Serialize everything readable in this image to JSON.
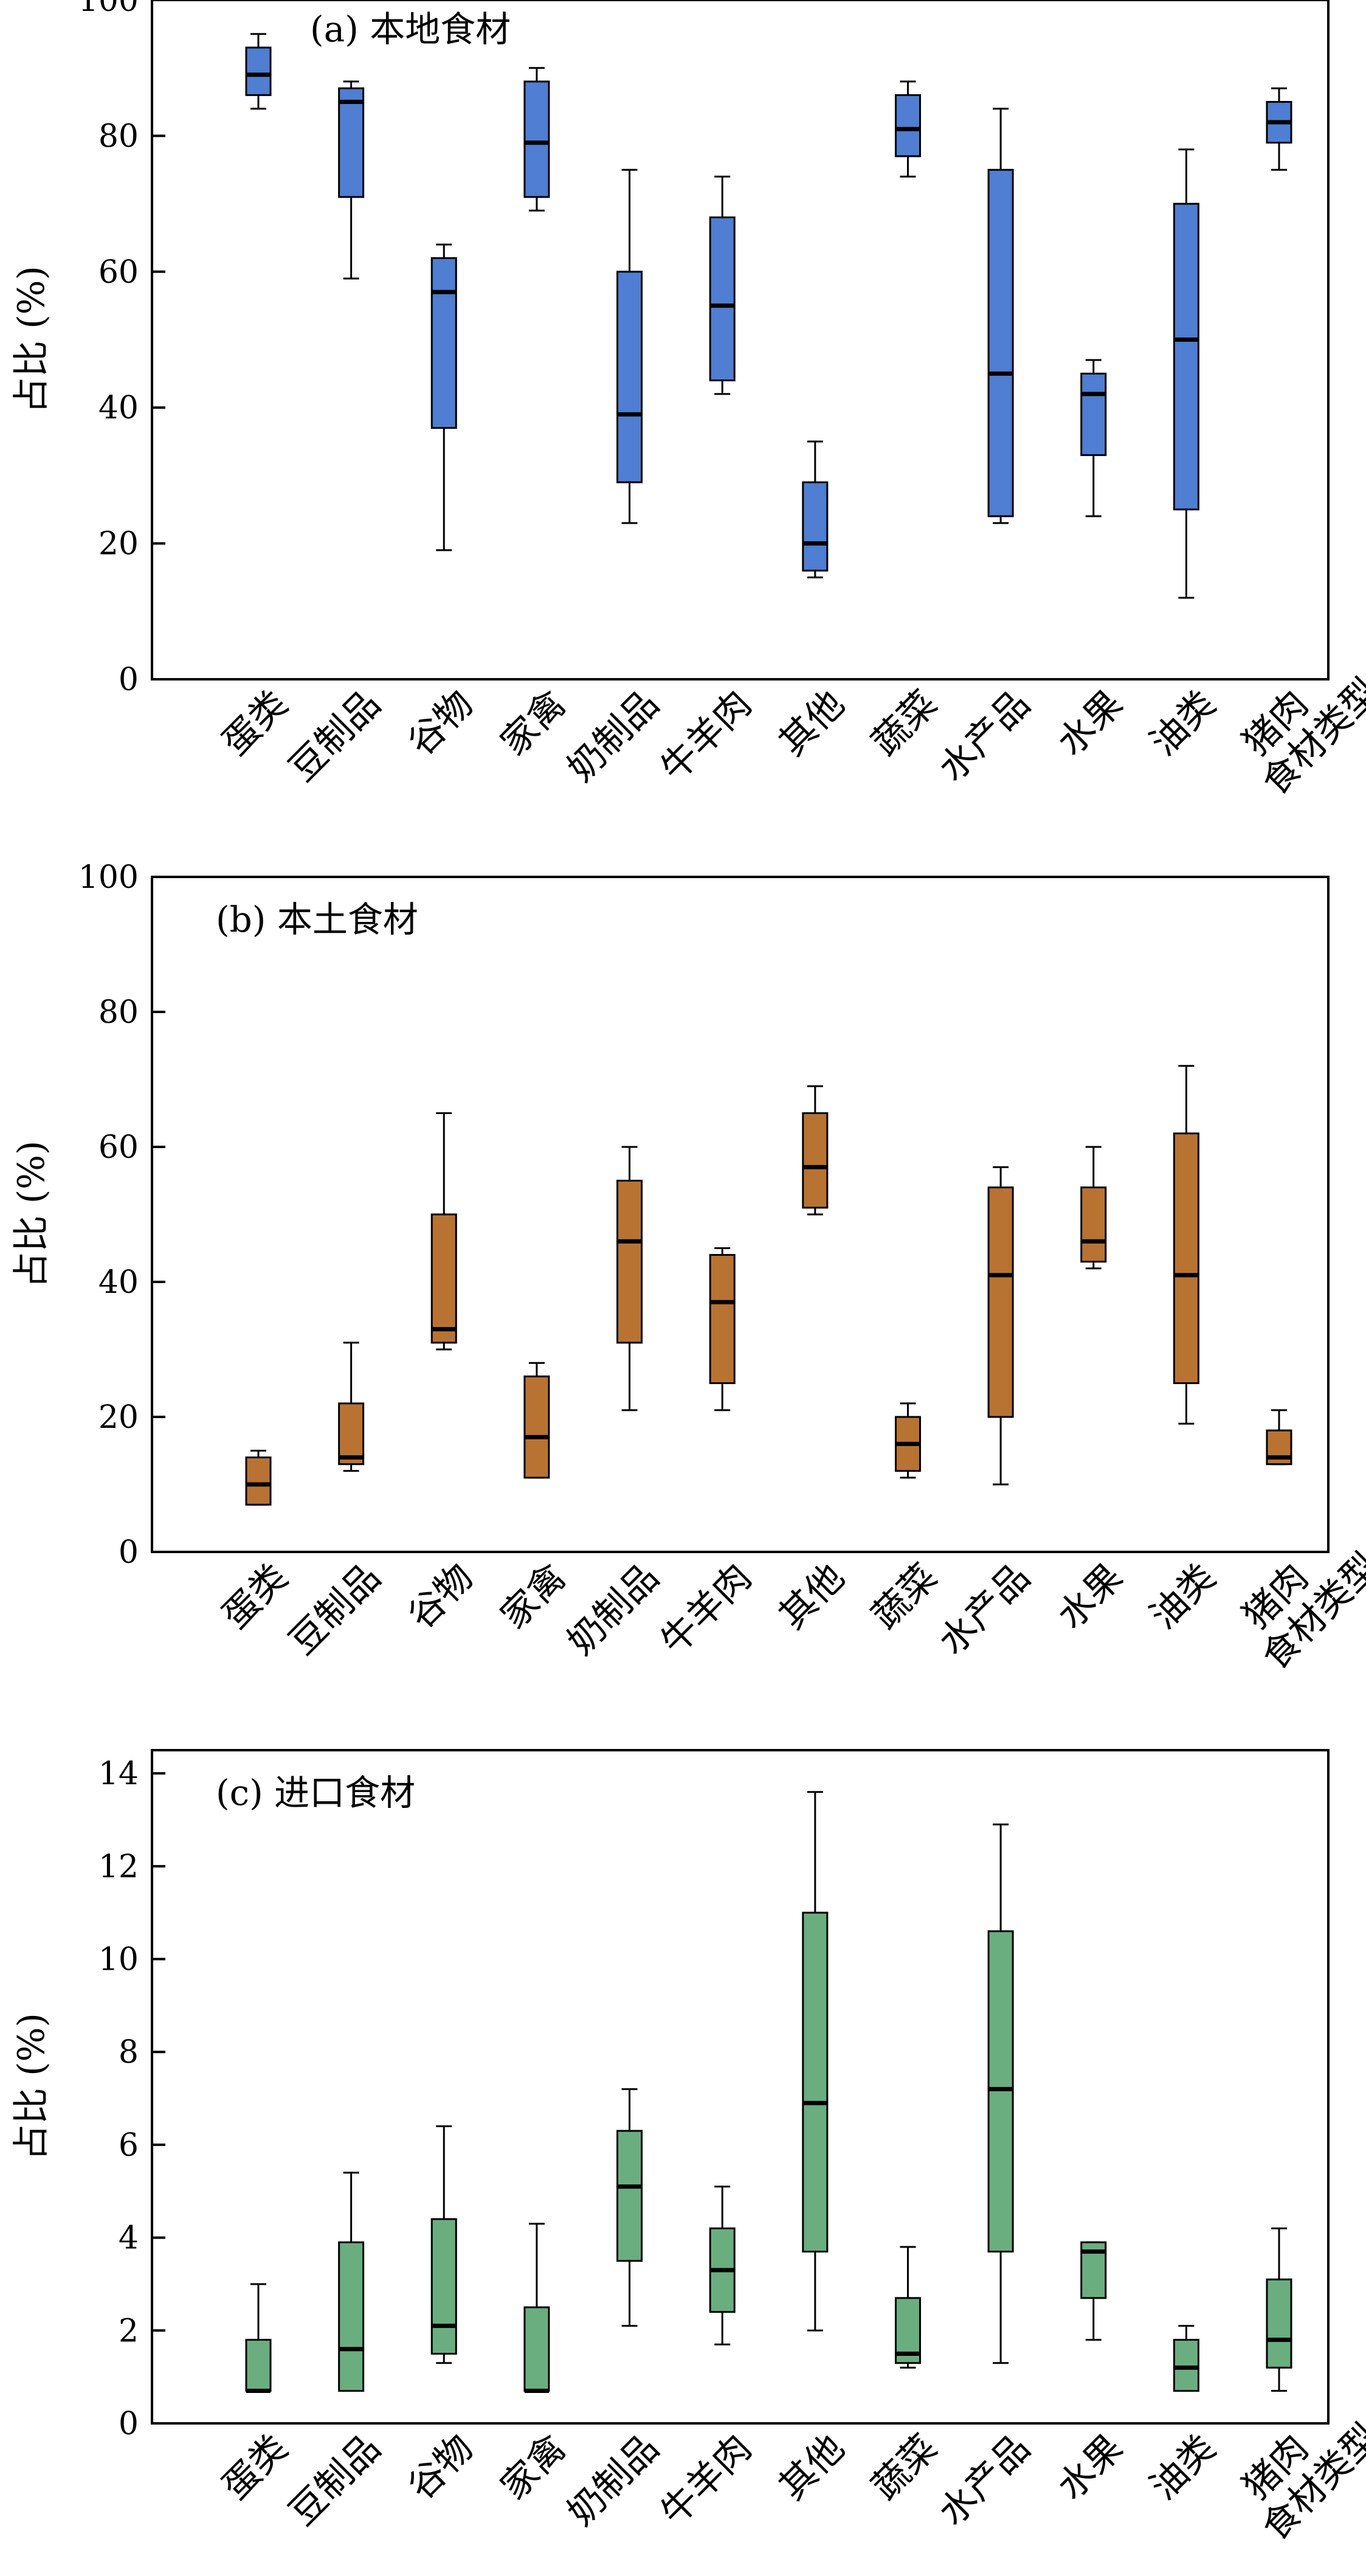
{
  "chart_data": [
    {
      "type": "box",
      "title": "(a) 本地食材",
      "ylabel": "占比 (%)",
      "xlabel": "食材类型",
      "ylim": [
        0,
        100
      ],
      "yticks": [
        0,
        20,
        40,
        60,
        80,
        100
      ],
      "color": "#4f7ed2",
      "categories": [
        "蛋类",
        "豆制品",
        "谷物",
        "家禽",
        "奶制品",
        "牛羊肉",
        "其他",
        "蔬菜",
        "水产品",
        "水果",
        "油类",
        "猪肉"
      ],
      "boxes": [
        {
          "min": 84,
          "q1": 86,
          "median": 89,
          "q3": 93,
          "max": 95
        },
        {
          "min": 59,
          "q1": 71,
          "median": 85,
          "q3": 87,
          "max": 88
        },
        {
          "min": 19,
          "q1": 37,
          "median": 57,
          "q3": 62,
          "max": 64
        },
        {
          "min": 69,
          "q1": 71,
          "median": 79,
          "q3": 88,
          "max": 90
        },
        {
          "min": 23,
          "q1": 29,
          "median": 39,
          "q3": 60,
          "max": 75
        },
        {
          "min": 42,
          "q1": 44,
          "median": 55,
          "q3": 68,
          "max": 74
        },
        {
          "min": 15,
          "q1": 16,
          "median": 20,
          "q3": 29,
          "max": 35
        },
        {
          "min": 74,
          "q1": 77,
          "median": 81,
          "q3": 86,
          "max": 88
        },
        {
          "min": 23,
          "q1": 24,
          "median": 45,
          "q3": 75,
          "max": 84
        },
        {
          "min": 24,
          "q1": 33,
          "median": 42,
          "q3": 45,
          "max": 47
        },
        {
          "min": 12,
          "q1": 25,
          "median": 50,
          "q3": 70,
          "max": 78
        },
        {
          "min": 75,
          "q1": 79,
          "median": 82,
          "q3": 85,
          "max": 87
        }
      ]
    },
    {
      "type": "box",
      "title": "(b) 本土食材",
      "ylabel": "占比 (%)",
      "xlabel": "食材类型",
      "ylim": [
        0,
        100
      ],
      "yticks": [
        0,
        20,
        40,
        60,
        80,
        100
      ],
      "color": "#b87333",
      "categories": [
        "蛋类",
        "豆制品",
        "谷物",
        "家禽",
        "奶制品",
        "牛羊肉",
        "其他",
        "蔬菜",
        "水产品",
        "水果",
        "油类",
        "猪肉"
      ],
      "boxes": [
        {
          "min": 7,
          "q1": 7,
          "median": 10,
          "q3": 14,
          "max": 15
        },
        {
          "min": 12,
          "q1": 13,
          "median": 14,
          "q3": 22,
          "max": 31
        },
        {
          "min": 30,
          "q1": 31,
          "median": 33,
          "q3": 50,
          "max": 65
        },
        {
          "min": 11,
          "q1": 11,
          "median": 17,
          "q3": 26,
          "max": 28
        },
        {
          "min": 21,
          "q1": 31,
          "median": 46,
          "q3": 55,
          "max": 60
        },
        {
          "min": 21,
          "q1": 25,
          "median": 37,
          "q3": 44,
          "max": 45
        },
        {
          "min": 50,
          "q1": 51,
          "median": 57,
          "q3": 65,
          "max": 69
        },
        {
          "min": 11,
          "q1": 12,
          "median": 16,
          "q3": 20,
          "max": 22
        },
        {
          "min": 10,
          "q1": 20,
          "median": 41,
          "q3": 54,
          "max": 57
        },
        {
          "min": 42,
          "q1": 43,
          "median": 46,
          "q3": 54,
          "max": 60
        },
        {
          "min": 19,
          "q1": 25,
          "median": 41,
          "q3": 62,
          "max": 72
        },
        {
          "min": 13,
          "q1": 13,
          "median": 14,
          "q3": 18,
          "max": 21
        }
      ]
    },
    {
      "type": "box",
      "title": "(c) 进口食材",
      "ylabel": "占比 (%)",
      "xlabel": "食材类型",
      "ylim": [
        0,
        14.5
      ],
      "yticks": [
        0,
        2,
        4,
        6,
        8,
        10,
        12,
        14
      ],
      "color": "#6aae80",
      "categories": [
        "蛋类",
        "豆制品",
        "谷物",
        "家禽",
        "奶制品",
        "牛羊肉",
        "其他",
        "蔬菜",
        "水产品",
        "水果",
        "油类",
        "猪肉"
      ],
      "boxes": [
        {
          "min": 0.7,
          "q1": 0.7,
          "median": 0.7,
          "q3": 1.8,
          "max": 3.0
        },
        {
          "min": 0.7,
          "q1": 0.7,
          "median": 1.6,
          "q3": 3.9,
          "max": 5.4
        },
        {
          "min": 1.3,
          "q1": 1.5,
          "median": 2.1,
          "q3": 4.4,
          "max": 6.4
        },
        {
          "min": 0.7,
          "q1": 0.7,
          "median": 0.7,
          "q3": 2.5,
          "max": 4.3
        },
        {
          "min": 2.1,
          "q1": 3.5,
          "median": 5.1,
          "q3": 6.3,
          "max": 7.2
        },
        {
          "min": 1.7,
          "q1": 2.4,
          "median": 3.3,
          "q3": 4.2,
          "max": 5.1
        },
        {
          "min": 2.0,
          "q1": 3.7,
          "median": 6.9,
          "q3": 11.0,
          "max": 13.6
        },
        {
          "min": 1.2,
          "q1": 1.3,
          "median": 1.5,
          "q3": 2.7,
          "max": 3.8
        },
        {
          "min": 1.3,
          "q1": 3.7,
          "median": 7.2,
          "q3": 10.6,
          "max": 12.9
        },
        {
          "min": 1.8,
          "q1": 2.7,
          "median": 3.7,
          "q3": 3.9,
          "max": 3.9
        },
        {
          "min": 0.7,
          "q1": 0.7,
          "median": 1.2,
          "q3": 1.8,
          "max": 2.1
        },
        {
          "min": 0.7,
          "q1": 1.2,
          "median": 1.8,
          "q3": 3.1,
          "max": 4.2
        }
      ]
    }
  ]
}
